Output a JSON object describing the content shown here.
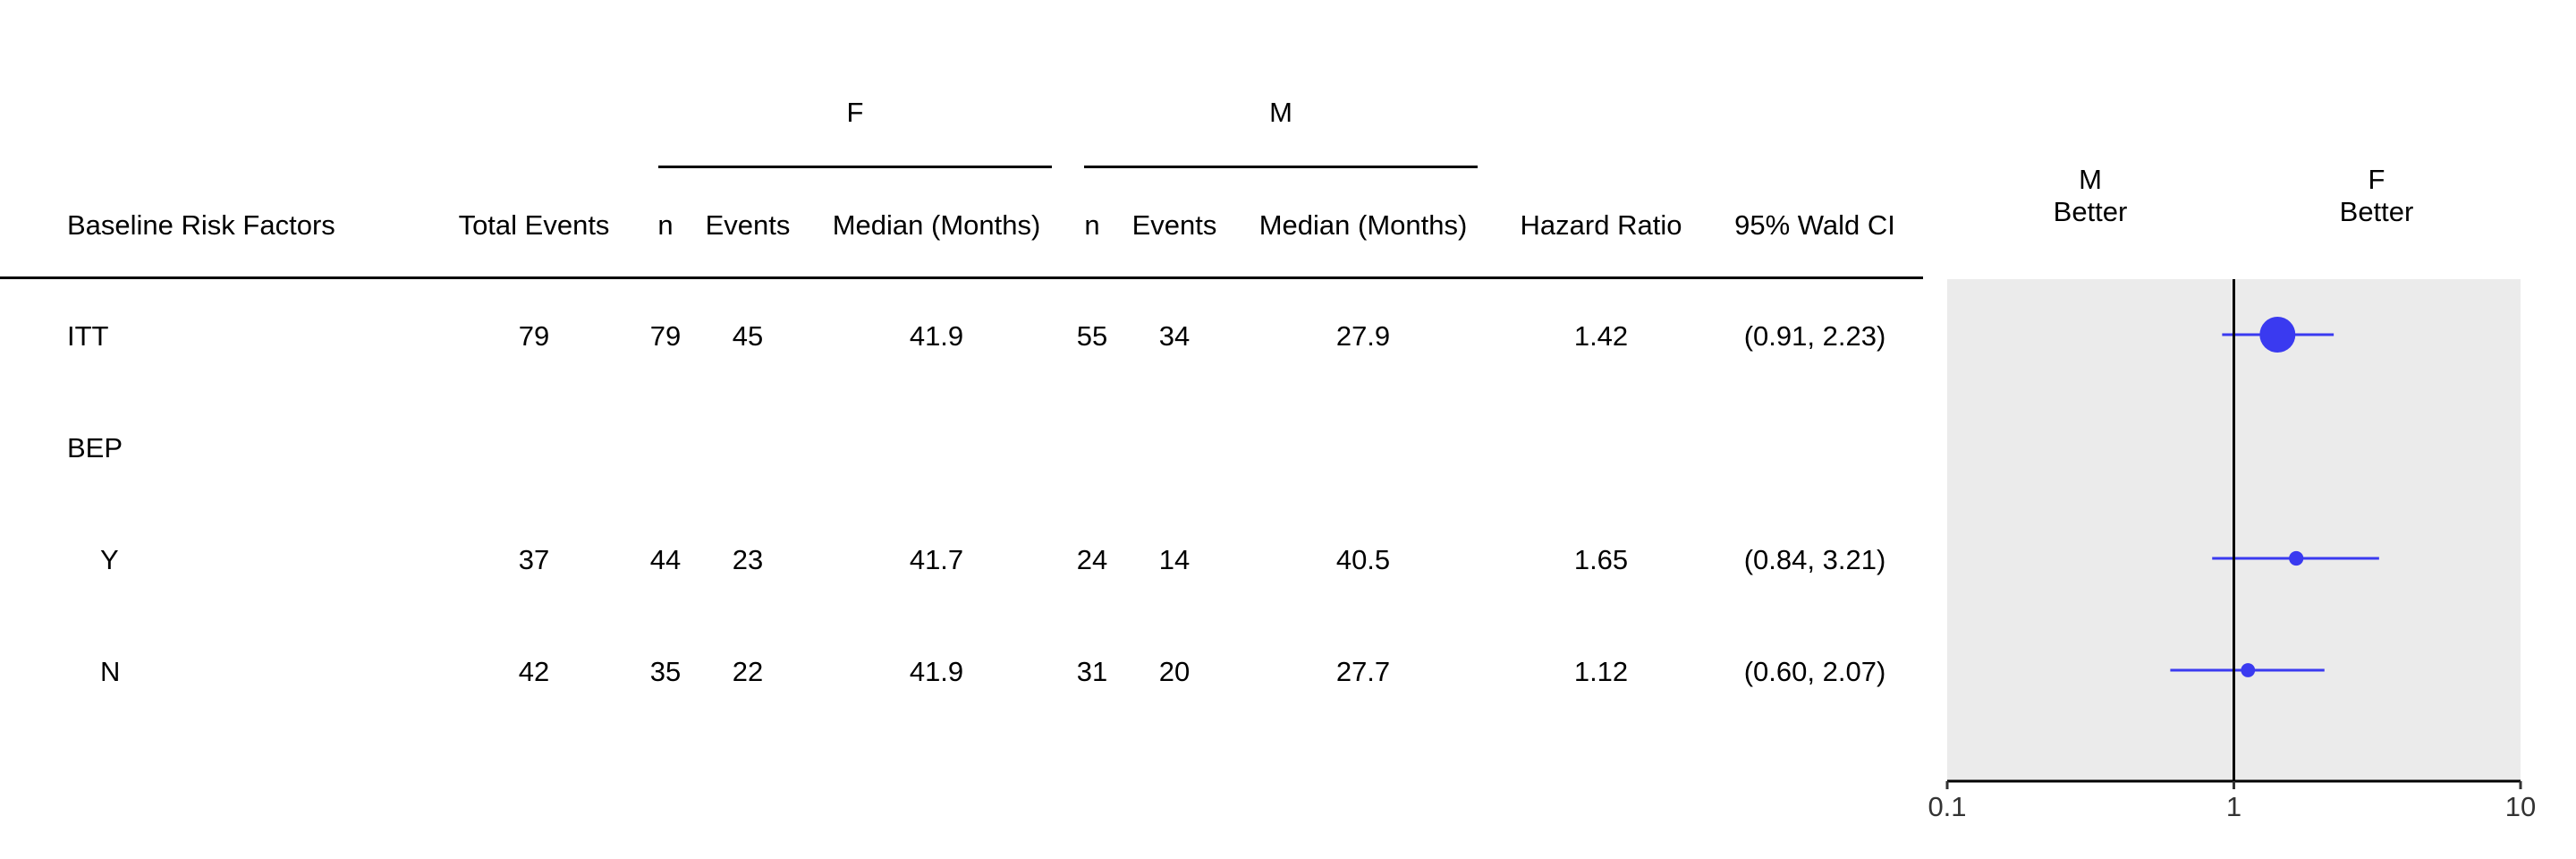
{
  "table": {
    "group_headers": {
      "f": "F",
      "m": "M"
    },
    "columns": {
      "factor": "Baseline Risk Factors",
      "total_events": "Total Events",
      "f_n": "n",
      "f_events": "Events",
      "f_median": "Median (Months)",
      "m_n": "n",
      "m_events": "Events",
      "m_median": "Median (Months)",
      "hr": "Hazard Ratio",
      "ci": "95% Wald CI"
    },
    "rows": [
      {
        "factor": "ITT",
        "total_events": "79",
        "f_n": "79",
        "f_events": "45",
        "f_median": "41.9",
        "m_n": "55",
        "m_events": "34",
        "m_median": "27.9",
        "hr": "1.42",
        "ci": "(0.91, 2.23)"
      },
      {
        "factor": "BEP",
        "total_events": "",
        "f_n": "",
        "f_events": "",
        "f_median": "",
        "m_n": "",
        "m_events": "",
        "m_median": "",
        "hr": "",
        "ci": ""
      },
      {
        "factor": "Y",
        "total_events": "37",
        "f_n": "44",
        "f_events": "23",
        "f_median": "41.7",
        "m_n": "24",
        "m_events": "14",
        "m_median": "40.5",
        "hr": "1.65",
        "ci": "(0.84, 3.21)"
      },
      {
        "factor": "N",
        "total_events": "42",
        "f_n": "35",
        "f_events": "22",
        "f_median": "41.9",
        "m_n": "31",
        "m_events": "20",
        "m_median": "27.7",
        "hr": "1.12",
        "ci": "(0.60, 2.07)"
      }
    ]
  },
  "chart_data": {
    "type": "forest",
    "x_scale": "log",
    "xlim": [
      0.1,
      10
    ],
    "x_ticks": [
      "0.1",
      "1",
      "10"
    ],
    "reference_line": 1,
    "left_label_top": "M",
    "left_label_bottom": "Better",
    "right_label_top": "F",
    "right_label_bottom": "Better",
    "categories": [
      "ITT",
      "BEP",
      "Y",
      "N"
    ],
    "points": [
      {
        "label": "ITT",
        "hr": 1.42,
        "lower": 0.91,
        "upper": 2.23,
        "weight": 134
      },
      {
        "label": "Y",
        "hr": 1.65,
        "lower": 0.84,
        "upper": 3.21,
        "weight": 68
      },
      {
        "label": "N",
        "hr": 1.12,
        "lower": 0.6,
        "upper": 2.07,
        "weight": 66
      }
    ],
    "colors": {
      "panel": "#ebebeb",
      "marker": "#3a3af0",
      "axis": "#000000"
    }
  }
}
